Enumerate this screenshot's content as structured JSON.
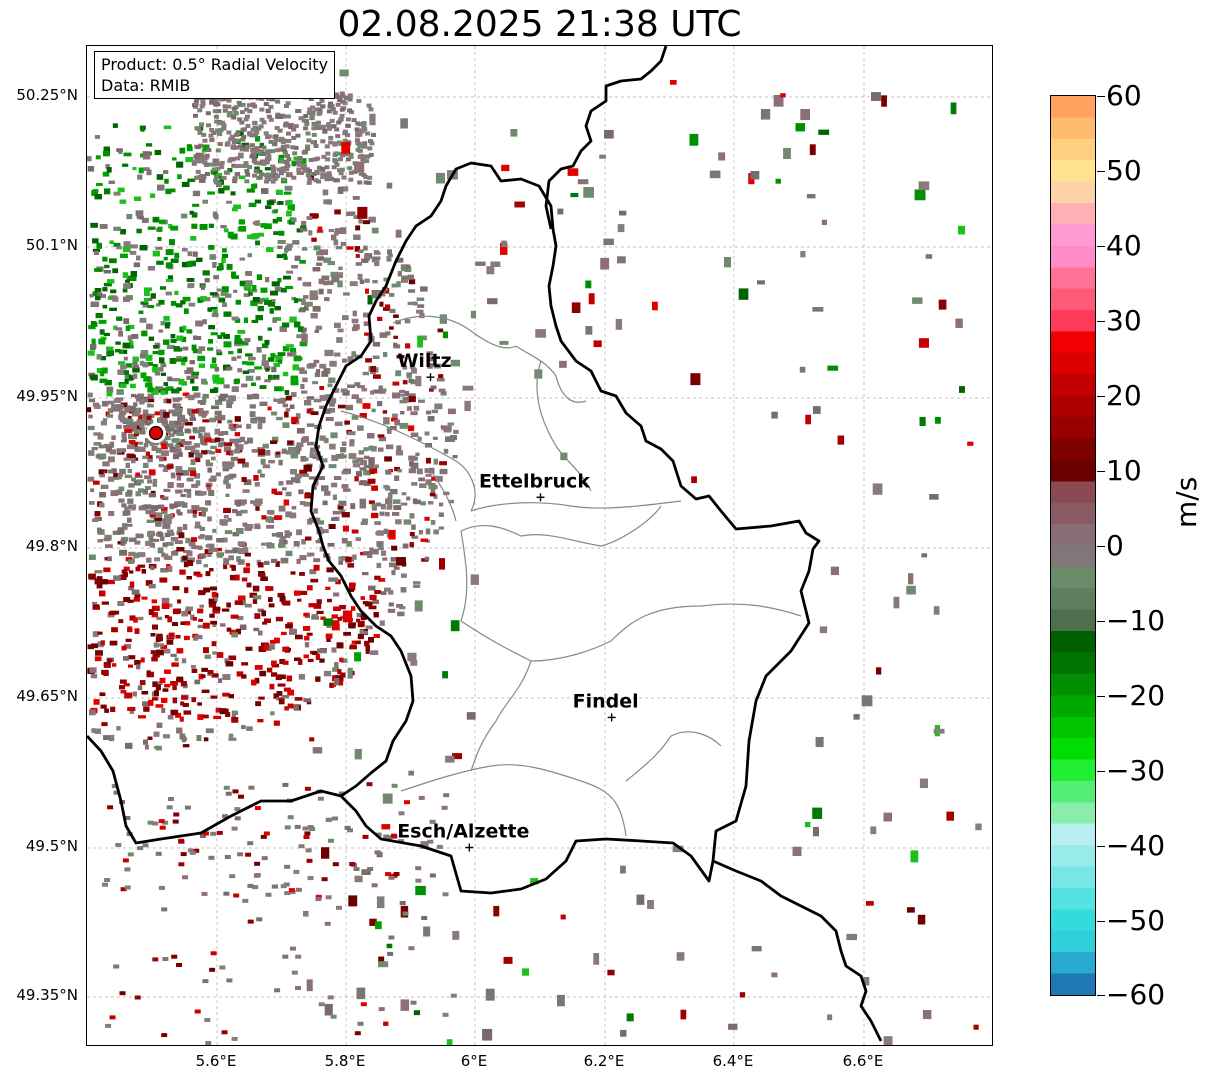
{
  "title": "02.08.2025 21:38 UTC",
  "info": {
    "product": "Product: 0.5° Radial Velocity",
    "data_source": "Data: RMIB"
  },
  "map": {
    "lat_labels": [
      "50.25°N",
      "50.1°N",
      "49.95°N",
      "49.8°N",
      "49.65°N",
      "49.5°N",
      "49.35°N"
    ],
    "lon_labels": [
      "5.6°E",
      "5.8°E",
      "6°E",
      "6.2°E",
      "6.4°E",
      "6.6°E"
    ],
    "cities": [
      {
        "name": "Wiltz",
        "lon": 5.93,
        "lat": 49.97
      },
      {
        "name": "Ettelbruck",
        "lon": 6.1,
        "lat": 49.85
      },
      {
        "name": "Findel",
        "lon": 6.21,
        "lat": 49.63
      },
      {
        "name": "Esch/Alzette",
        "lon": 5.99,
        "lat": 49.5
      }
    ],
    "radar_site": {
      "lon": 5.505,
      "lat": 49.915
    }
  },
  "colorbar": {
    "unit": "m/s",
    "ticks": [
      "60",
      "50",
      "40",
      "30",
      "20",
      "10",
      "0",
      "−10",
      "−20",
      "−30",
      "−40",
      "−50",
      "−60"
    ],
    "range": [
      -60,
      60
    ],
    "colors": [
      "#1f78b4",
      "#29aacf",
      "#2fd0d8",
      "#33dcdc",
      "#55e2e2",
      "#77e6e6",
      "#99eaea",
      "#b8eeee",
      "#88eeaa",
      "#55ee77",
      "#22ee33",
      "#00dd00",
      "#00c400",
      "#00a800",
      "#008f00",
      "#007400",
      "#006000",
      "#4e6e4e",
      "#5e7e5e",
      "#6a8a6a",
      "#807878",
      "#886e76",
      "#8a5a64",
      "#8a4a54",
      "#6a0000",
      "#800000",
      "#960000",
      "#ac0000",
      "#c40000",
      "#dc0000",
      "#f00000",
      "#ff3a5a",
      "#ff5a78",
      "#ff7296",
      "#ff8cc8",
      "#ff9bd2",
      "#ffb0b6",
      "#ffd3a8",
      "#ffe28f",
      "#ffd080",
      "#ffbb70",
      "#ffa260"
    ]
  }
}
